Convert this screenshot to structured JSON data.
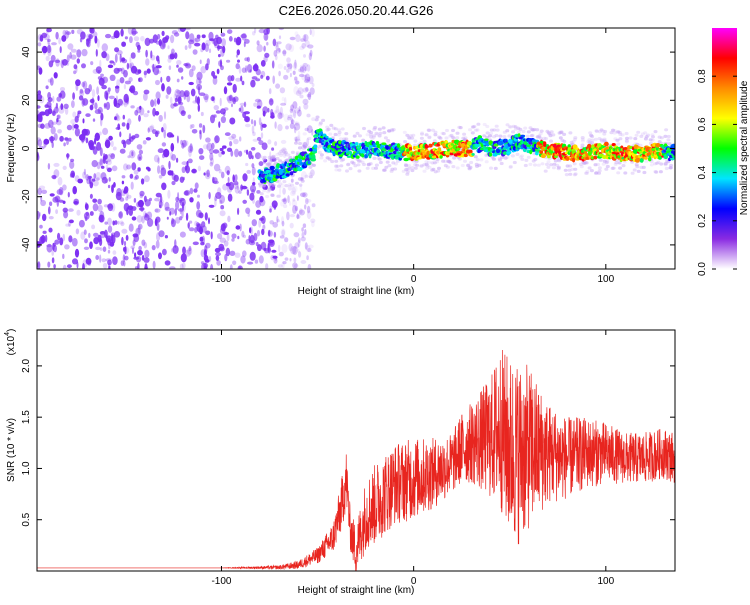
{
  "colors": {
    "spectrogram_noise": "#7b2cf2",
    "snr_line": "#e8251f",
    "axis": "#000000"
  },
  "chart_data": [
    {
      "type": "heatmap",
      "title": "C2E6.2026.050.20.44.G26",
      "xlabel": "Height of straight line (km)",
      "ylabel": "Frequency (Hz)",
      "xlim": [
        -196,
        136
      ],
      "ylim": [
        -50,
        50
      ],
      "x_ticks": [
        -100,
        0,
        100
      ],
      "x_tick_labels": [
        "-100",
        "0",
        "100"
      ],
      "y_ticks": [
        -40,
        -20,
        0,
        20,
        40
      ],
      "y_tick_labels": [
        "-40",
        "-20",
        "0",
        "20",
        "40"
      ],
      "noise_region_x": [
        -196,
        -60
      ],
      "signal_trace": {
        "x": [
          -80,
          -70,
          -60,
          -52,
          -50,
          -45,
          -40,
          -30,
          -20,
          -10,
          0,
          10,
          20,
          30,
          35,
          40,
          50,
          55,
          60,
          70,
          80,
          90,
          100,
          110,
          120,
          130,
          136
        ],
        "y": [
          -12,
          -10,
          -6,
          -2,
          6,
          2,
          0,
          -1,
          0,
          -1,
          -2,
          -1,
          0,
          0,
          2,
          0,
          1,
          3,
          1,
          -1,
          -2,
          -2,
          -1,
          -2,
          -2,
          -1,
          -2
        ]
      },
      "colorbar": {
        "label": "Normalized spectral amplitude",
        "range": [
          0.0,
          1.0
        ],
        "ticks": [
          0.0,
          0.2,
          0.4,
          0.6,
          0.8
        ],
        "tick_labels": [
          "0.0",
          "0.2",
          "0.4",
          "0.6",
          "0.8"
        ],
        "colormap": [
          "#ffffff",
          "#8a2be2",
          "#0000ff",
          "#00e5ff",
          "#00ff00",
          "#ffff00",
          "#ff8c00",
          "#ff0000",
          "#ff00ff"
        ]
      }
    },
    {
      "type": "line",
      "title": "",
      "xlabel": "Height of straight line (km)",
      "ylabel": "SNR (10 * v/v)",
      "scale_label": "(x10",
      "scale_exponent": "4",
      "scale_suffix": ")",
      "xlim": [
        -196,
        136
      ],
      "ylim": [
        0,
        23500
      ],
      "x_ticks": [
        -100,
        0,
        100
      ],
      "x_tick_labels": [
        "-100",
        "0",
        "100"
      ],
      "y_ticks": [
        5000,
        10000,
        15000,
        20000
      ],
      "y_tick_labels": [
        "0.5",
        "1.0",
        "1.5",
        "2.0"
      ],
      "series": [
        {
          "name": "SNR",
          "x": [
            -196,
            -150,
            -100,
            -70,
            -60,
            -50,
            -42,
            -38,
            -35,
            -33,
            -30,
            -25,
            -20,
            -10,
            0,
            10,
            20,
            25,
            30,
            40,
            45,
            50,
            55,
            60,
            70,
            80,
            90,
            100,
            110,
            120,
            130,
            136
          ],
          "y": [
            300,
            300,
            300,
            350,
            600,
            1500,
            3200,
            6000,
            9000,
            4000,
            2000,
            5500,
            6500,
            8500,
            9000,
            9500,
            10500,
            12000,
            12500,
            13000,
            14000,
            12000,
            11500,
            12000,
            11500,
            11000,
            11500,
            11500,
            11000,
            11000,
            11500,
            11000
          ],
          "spread": [
            0,
            0,
            0,
            200,
            400,
            800,
            1500,
            2500,
            3000,
            2000,
            2500,
            3500,
            4000,
            4000,
            4000,
            3500,
            3000,
            3500,
            4000,
            6000,
            8000,
            9000,
            9000,
            8000,
            5000,
            4000,
            3500,
            3000,
            2500,
            2500,
            2500,
            2500
          ]
        }
      ]
    }
  ]
}
